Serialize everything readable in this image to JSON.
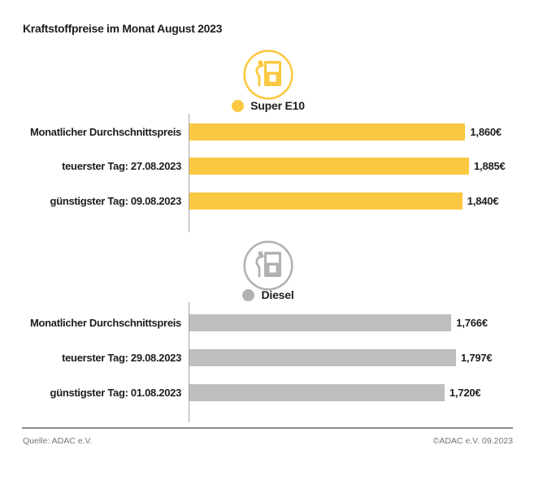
{
  "title": "Kraftstoffpreise im Monat August 2023",
  "colors": {
    "super_e10": "#FBC841",
    "diesel_bar": "#BFBEBE",
    "diesel_icon": "#B3B2B2",
    "text": "#1D1D1B",
    "axis": "#A5A5A5",
    "divider": "#8D8D8D",
    "footer_text": "#757575",
    "background": "#FFFFFF"
  },
  "chart_data": {
    "type": "bar",
    "orientation": "horizontal",
    "unit": "€",
    "value_axis_range": [
      0,
      1.885
    ],
    "grid": false,
    "sections": [
      {
        "name": "Super E10",
        "icon": "fuel-pump-icon",
        "bar_color": "#FBC841",
        "icon_color": "#FBC841",
        "categories": [
          "Monatlicher Durchschnittspreis",
          "teuerster Tag: 27.08.2023",
          "günstigster Tag: 09.08.2023"
        ],
        "values": [
          1.86,
          1.885,
          1.84
        ],
        "value_labels": [
          "1,860€",
          "1,885€",
          "1,840€"
        ]
      },
      {
        "name": "Diesel",
        "icon": "fuel-pump-icon",
        "bar_color": "#BFBEBE",
        "icon_color": "#B3B2B2",
        "categories": [
          "Monatlicher Durchschnittspreis",
          "teuerster Tag: 29.08.2023",
          "günstigster Tag: 01.08.2023"
        ],
        "values": [
          1.766,
          1.797,
          1.72
        ],
        "value_labels": [
          "1,766€",
          "1,797€",
          "1,720€"
        ]
      }
    ]
  },
  "footer": {
    "source": "Quelle: ADAC e.V.",
    "copyright": "©ADAC e.V. 09.2023"
  }
}
